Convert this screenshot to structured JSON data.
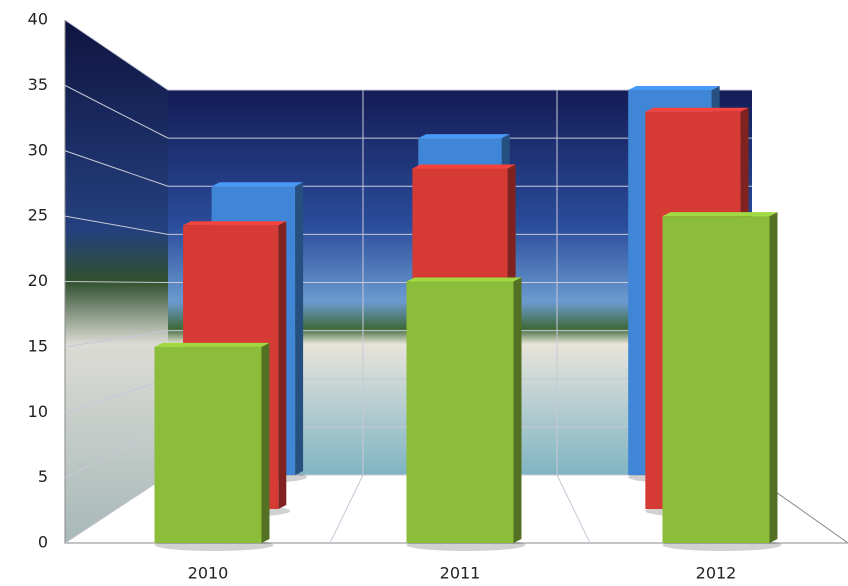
{
  "chart_data": {
    "type": "bar3d",
    "categories": [
      "2010",
      "2011",
      "2012"
    ],
    "series": [
      {
        "color": "#3f86d6",
        "values": [
          30,
          35,
          40
        ]
      },
      {
        "color": "#d63a35",
        "values": [
          25,
          30,
          35
        ]
      },
      {
        "color": "#8cbd3a",
        "values": [
          15,
          20,
          25
        ]
      }
    ],
    "ylim": [
      0,
      40
    ],
    "yticks": [
      0,
      5,
      10,
      15,
      20,
      25,
      30,
      35,
      40
    ],
    "grid": true
  }
}
